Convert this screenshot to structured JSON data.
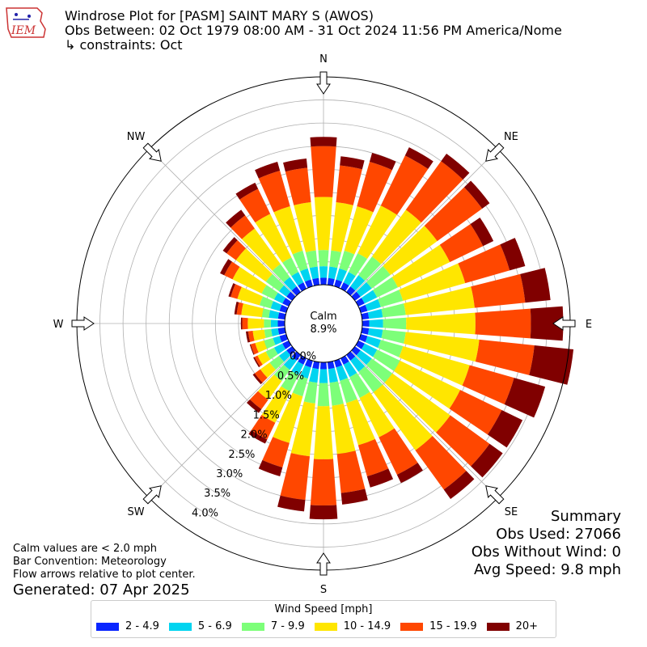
{
  "header": {
    "logo_text": "IEM",
    "title": "Windrose Plot for [PASM] SAINT MARY S (AWOS)",
    "obs_between": "Obs Between: 02 Oct 1979 08:00 AM - 31 Oct 2024 11:56 PM America/Nome",
    "constraints": "↳ constraints: Oct"
  },
  "notes": {
    "calm_def": "Calm values are < 2.0 mph",
    "bar_convention": "Bar Convention: Meteorology",
    "flow_arrows": "Flow arrows relative to plot center.",
    "generated": "Generated: 07 Apr 2025"
  },
  "summary": {
    "title": "Summary",
    "obs_used": "Obs Used: 27066",
    "obs_without_wind": "Obs Without Wind: 0",
    "avg_speed": "Avg Speed: 9.8 mph"
  },
  "legend": {
    "title": "Wind Speed [mph]",
    "items": [
      {
        "label": "2 - 4.9",
        "color": "#0a26ff"
      },
      {
        "label": "5 - 6.9",
        "color": "#00d4f0"
      },
      {
        "label": "7 - 9.9",
        "color": "#7dff79"
      },
      {
        "label": "10 - 14.9",
        "color": "#ffe600"
      },
      {
        "label": "15 - 19.9",
        "color": "#ff4700"
      },
      {
        "label": "20+",
        "color": "#800000"
      }
    ]
  },
  "chart_data": {
    "type": "bar",
    "subtype": "polar-stacked (windrose)",
    "direction_convention": "Meteorology",
    "units": "percent",
    "calm": {
      "label": "Calm",
      "value": "8.9%"
    },
    "radial_ticks": [
      "0.0%",
      "0.5%",
      "1.0%",
      "1.5%",
      "2.0%",
      "2.5%",
      "3.0%",
      "3.5%",
      "4.0%"
    ],
    "radial_tick_values": [
      0,
      0.5,
      1.0,
      1.5,
      2.0,
      2.5,
      3.0,
      3.5,
      4.0
    ],
    "rmax": 4.5,
    "compass_labels": [
      {
        "label": "N",
        "deg": 0
      },
      {
        "label": "NE",
        "deg": 45
      },
      {
        "label": "E",
        "deg": 90
      },
      {
        "label": "SE",
        "deg": 135
      },
      {
        "label": "S",
        "deg": 180
      },
      {
        "label": "SW",
        "deg": 225
      },
      {
        "label": "W",
        "deg": 270
      },
      {
        "label": "NW",
        "deg": 315
      }
    ],
    "series_names": [
      "2 - 4.9",
      "5 - 6.9",
      "7 - 9.9",
      "10 - 14.9",
      "15 - 19.9",
      "20+"
    ],
    "directions": [
      0,
      10,
      20,
      30,
      40,
      50,
      60,
      70,
      80,
      90,
      100,
      110,
      120,
      130,
      140,
      150,
      160,
      170,
      180,
      190,
      200,
      210,
      220,
      230,
      240,
      250,
      260,
      270,
      280,
      290,
      300,
      310,
      320,
      330,
      340,
      350
    ],
    "cumulative": [
      [
        0.15,
        0.4,
        0.75,
        1.9,
        3.0,
        3.2
      ],
      [
        0.15,
        0.4,
        0.75,
        1.8,
        2.6,
        2.8
      ],
      [
        0.15,
        0.4,
        0.8,
        1.8,
        2.8,
        3.0
      ],
      [
        0.15,
        0.4,
        0.85,
        2.0,
        3.2,
        3.4
      ],
      [
        0.15,
        0.45,
        0.95,
        2.2,
        3.5,
        3.7
      ],
      [
        0.15,
        0.45,
        0.95,
        2.2,
        3.4,
        3.6
      ],
      [
        0.15,
        0.45,
        0.95,
        2.2,
        3.0,
        3.25
      ],
      [
        0.15,
        0.45,
        0.95,
        2.35,
        3.35,
        3.7
      ],
      [
        0.15,
        0.45,
        0.95,
        2.45,
        3.55,
        4.1
      ],
      [
        0.15,
        0.45,
        0.95,
        2.45,
        3.65,
        4.35
      ],
      [
        0.15,
        0.45,
        0.95,
        2.55,
        3.75,
        4.6
      ],
      [
        0.15,
        0.45,
        0.95,
        2.45,
        3.45,
        4.15
      ],
      [
        0.15,
        0.45,
        1.0,
        2.45,
        3.45,
        3.95
      ],
      [
        0.15,
        0.45,
        1.0,
        2.55,
        3.6,
        3.95
      ],
      [
        0.15,
        0.45,
        1.0,
        2.55,
        3.6,
        3.85
      ],
      [
        0.15,
        0.45,
        0.95,
        1.9,
        2.8,
        3.0
      ],
      [
        0.15,
        0.45,
        0.95,
        1.9,
        2.6,
        2.85
      ],
      [
        0.15,
        0.45,
        0.95,
        2.0,
        2.85,
        3.1
      ],
      [
        0.15,
        0.45,
        0.95,
        2.1,
        3.1,
        3.4
      ],
      [
        0.15,
        0.45,
        0.9,
        2.05,
        3.0,
        3.25
      ],
      [
        0.15,
        0.4,
        0.8,
        1.85,
        2.4,
        2.6
      ],
      [
        0.15,
        0.4,
        0.8,
        1.55,
        1.95,
        2.05
      ],
      [
        0.15,
        0.4,
        0.7,
        1.2,
        1.45,
        1.55
      ],
      [
        0.15,
        0.35,
        0.6,
        0.85,
        1.0,
        1.05
      ],
      [
        0.15,
        0.35,
        0.55,
        0.75,
        0.82,
        0.85
      ],
      [
        0.15,
        0.3,
        0.5,
        0.7,
        0.8,
        0.82
      ],
      [
        0.15,
        0.3,
        0.45,
        0.7,
        0.8,
        0.85
      ],
      [
        0.15,
        0.3,
        0.45,
        0.8,
        0.92,
        0.95
      ],
      [
        0.15,
        0.35,
        0.5,
        0.95,
        1.05,
        1.1
      ],
      [
        0.15,
        0.35,
        0.6,
        1.1,
        1.25,
        1.3
      ],
      [
        0.15,
        0.35,
        0.65,
        1.35,
        1.55,
        1.65
      ],
      [
        0.15,
        0.35,
        0.7,
        1.5,
        1.75,
        1.85
      ],
      [
        0.15,
        0.4,
        0.75,
        1.7,
        2.05,
        2.2
      ],
      [
        0.15,
        0.4,
        0.75,
        1.8,
        2.4,
        2.55
      ],
      [
        0.15,
        0.4,
        0.8,
        1.8,
        2.6,
        2.8
      ],
      [
        0.15,
        0.4,
        0.75,
        1.8,
        2.55,
        2.75
      ]
    ]
  }
}
